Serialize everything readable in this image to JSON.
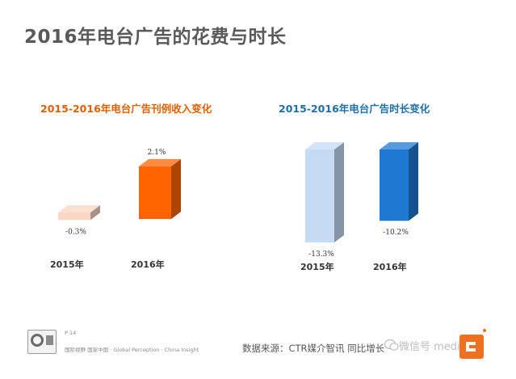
{
  "page": {
    "title": "2016年电台广告的花费与时长",
    "page_number": "P 14",
    "slogan": "国际视野 国家中国 · Global Perception · China Insight",
    "source": "数据来源：CTR媒介智讯   同比增长",
    "watermark": "微信号 medium"
  },
  "colors": {
    "left_title": "#e06000",
    "right_title": "#1f6fa8",
    "page_title": "#5a5a5a"
  },
  "chart_data": [
    {
      "type": "bar",
      "title": "2015-2016年电台广告刊例收入变化",
      "categories": [
        "2015年",
        "2016年"
      ],
      "values": [
        -0.3,
        2.1
      ],
      "data_labels": [
        "-0.3%",
        "2.1%"
      ],
      "colors": [
        "#f9d6c3",
        "#ff6400"
      ],
      "unit": "%"
    },
    {
      "type": "bar",
      "title": "2015-2016年电台广告时长变化",
      "categories": [
        "2015年",
        "2016年"
      ],
      "values": [
        -13.3,
        -10.2
      ],
      "data_labels": [
        "-13.3%",
        "-10.2%"
      ],
      "colors": [
        "#c5dbf4",
        "#1f78d1"
      ],
      "unit": "%"
    }
  ]
}
